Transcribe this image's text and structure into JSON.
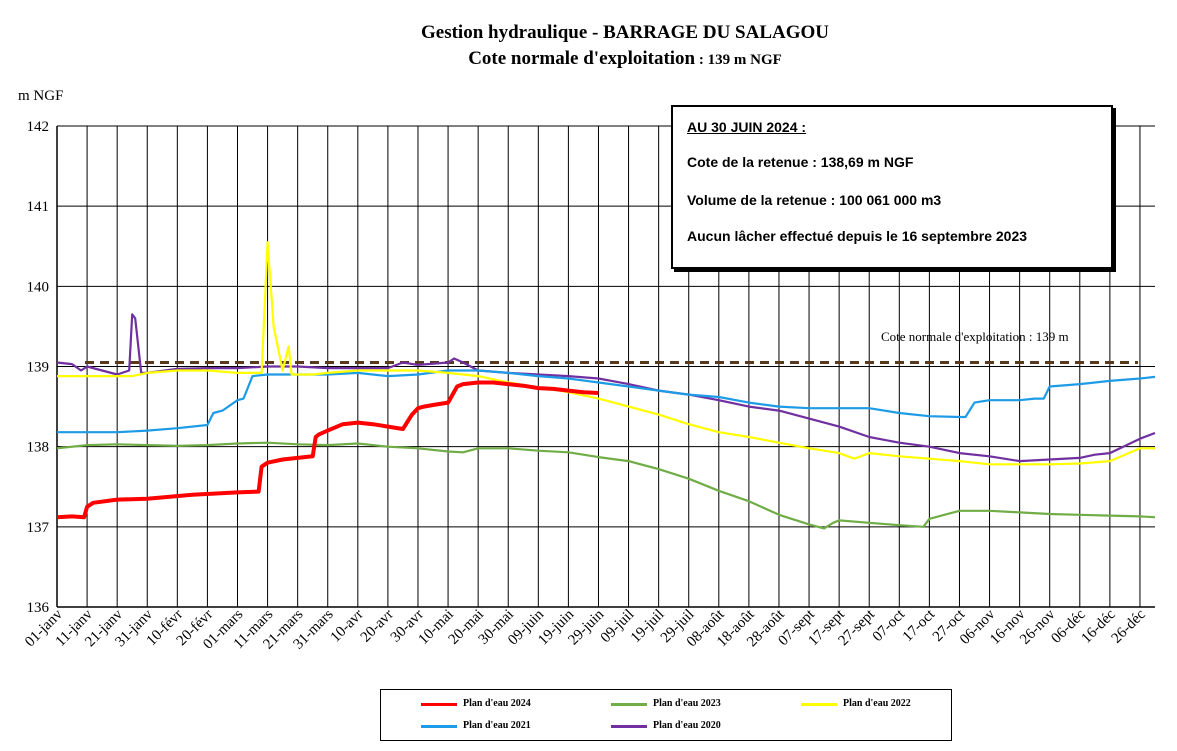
{
  "title": "Gestion hydraulique - BARRAGE DU SALAGOU",
  "subtitle": "Cote normale d'exploitation",
  "subtitle_suffix": " : 139 m NGF",
  "colors": {
    "2024": "#ff0000",
    "2023": "#70ad47",
    "2022": "#ffff00",
    "2021": "#1e9be6",
    "2020": "#7030a0",
    "reference": "#5a3a1e"
  },
  "info_box": {
    "heading": "AU 30 JUIN 2024 :",
    "line1": "Cote de la retenue : 138,69 m NGF",
    "line2": "Volume de la retenue : 100 061 000 m3",
    "line3": "Aucun lâcher effectué depuis le 16 septembre 2023"
  },
  "reference_line": {
    "label": "Cote normale d'exploitation : 139 m",
    "value": 139.05
  },
  "legend": [
    {
      "label": "Plan d'eau 2024",
      "color": "#ff0000"
    },
    {
      "label": "Plan d'eau 2023",
      "color": "#70ad47"
    },
    {
      "label": "Plan d'eau 2022",
      "color": "#ffff00"
    },
    {
      "label": "Plan d'eau 2021",
      "color": "#1e9be6"
    },
    {
      "label": "Plan d'eau 2020",
      "color": "#7030a0"
    }
  ],
  "chart_data": {
    "type": "line",
    "title": "Gestion hydraulique - BARRAGE DU SALAGOU",
    "subtitle": "Cote normale d'exploitation : 139 m NGF",
    "ylabel": "m NGF",
    "xlabel": "",
    "ylim": [
      136,
      142
    ],
    "xlim": [
      0,
      365
    ],
    "yticks": [
      136,
      137,
      138,
      139,
      140,
      141,
      142
    ],
    "xtick_days": [
      0,
      10,
      20,
      30,
      40,
      50,
      60,
      70,
      80,
      90,
      100,
      110,
      120,
      130,
      140,
      150,
      160,
      170,
      180,
      190,
      200,
      210,
      220,
      230,
      240,
      250,
      260,
      270,
      280,
      290,
      300,
      310,
      320,
      330,
      340,
      350,
      360
    ],
    "xtick_labels": [
      "01-janv",
      "11-janv",
      "21-janv",
      "31-janv",
      "10-févr",
      "20-févr",
      "01-mars",
      "11-mars",
      "21-mars",
      "31-mars",
      "10-avr",
      "20-avr",
      "30-avr",
      "10-mai",
      "20-mai",
      "30-mai",
      "09-juin",
      "19-juin",
      "29-juin",
      "09-juil",
      "19-juil",
      "29-juil",
      "08-août",
      "18-août",
      "28-août",
      "07-sept",
      "17-sept",
      "27-sept",
      "07-oct",
      "17-oct",
      "27-oct",
      "06-nov",
      "16-nov",
      "26-nov",
      "06-déc",
      "16-déc",
      "26-déc"
    ],
    "grid": true,
    "series": [
      {
        "name": "Plan d'eau 2024",
        "x": [
          0,
          5,
          9,
          10,
          12,
          20,
          30,
          45,
          60,
          67,
          68,
          70,
          75,
          85,
          86,
          87,
          90,
          95,
          100,
          105,
          110,
          115,
          118,
          120,
          122,
          125,
          130,
          133,
          135,
          140,
          145,
          150,
          155,
          160,
          165,
          170,
          175,
          180
        ],
        "y": [
          137.12,
          137.13,
          137.12,
          137.25,
          137.3,
          137.34,
          137.35,
          137.4,
          137.43,
          137.44,
          137.75,
          137.8,
          137.84,
          137.88,
          138.12,
          138.15,
          138.2,
          138.28,
          138.3,
          138.28,
          138.25,
          138.22,
          138.4,
          138.48,
          138.5,
          138.52,
          138.55,
          138.75,
          138.78,
          138.8,
          138.8,
          138.78,
          138.76,
          138.73,
          138.72,
          138.7,
          138.68,
          138.67
        ]
      },
      {
        "name": "Plan d'eau 2023",
        "x": [
          0,
          10,
          20,
          30,
          40,
          50,
          60,
          70,
          80,
          90,
          100,
          110,
          120,
          130,
          135,
          140,
          150,
          160,
          170,
          180,
          190,
          200,
          210,
          220,
          230,
          240,
          250,
          255,
          258,
          260,
          270,
          280,
          288,
          290,
          295,
          300,
          310,
          320,
          330,
          340,
          350,
          360,
          365
        ],
        "y": [
          137.98,
          138.02,
          138.03,
          138.02,
          138.01,
          138.02,
          138.04,
          138.05,
          138.03,
          138.02,
          138.04,
          138.0,
          137.98,
          137.94,
          137.93,
          137.98,
          137.98,
          137.95,
          137.93,
          137.87,
          137.82,
          137.72,
          137.6,
          137.45,
          137.32,
          137.15,
          137.03,
          136.98,
          137.05,
          137.08,
          137.05,
          137.02,
          137.0,
          137.1,
          137.15,
          137.2,
          137.2,
          137.18,
          137.16,
          137.15,
          137.14,
          137.13,
          137.12
        ]
      },
      {
        "name": "Plan d'eau 2022",
        "x": [
          0,
          10,
          20,
          25,
          30,
          40,
          50,
          60,
          68,
          70,
          72,
          75,
          77,
          78,
          80,
          85,
          90,
          100,
          110,
          120,
          130,
          140,
          150,
          160,
          170,
          180,
          190,
          200,
          210,
          220,
          230,
          240,
          250,
          260,
          265,
          270,
          280,
          290,
          300,
          310,
          320,
          330,
          340,
          350,
          355,
          360,
          365
        ],
        "y": [
          138.88,
          138.88,
          138.88,
          138.88,
          138.92,
          138.95,
          138.95,
          138.92,
          138.92,
          140.55,
          139.5,
          138.95,
          139.25,
          138.9,
          138.9,
          138.9,
          138.92,
          138.95,
          138.95,
          138.95,
          138.92,
          138.88,
          138.8,
          138.74,
          138.68,
          138.6,
          138.5,
          138.4,
          138.28,
          138.18,
          138.12,
          138.05,
          137.98,
          137.92,
          137.85,
          137.92,
          137.88,
          137.85,
          137.82,
          137.78,
          137.78,
          137.78,
          137.79,
          137.82,
          137.9,
          137.98,
          137.98
        ]
      },
      {
        "name": "Plan d'eau 2021",
        "x": [
          0,
          10,
          20,
          30,
          40,
          50,
          52,
          55,
          60,
          62,
          65,
          70,
          80,
          90,
          100,
          110,
          120,
          130,
          140,
          150,
          160,
          170,
          180,
          190,
          200,
          210,
          220,
          230,
          240,
          250,
          260,
          270,
          280,
          290,
          300,
          302,
          305,
          310,
          320,
          325,
          328,
          330,
          340,
          350,
          360,
          365
        ],
        "y": [
          138.18,
          138.18,
          138.18,
          138.2,
          138.23,
          138.27,
          138.42,
          138.45,
          138.58,
          138.6,
          138.88,
          138.9,
          138.9,
          138.9,
          138.92,
          138.88,
          138.9,
          138.95,
          138.95,
          138.92,
          138.88,
          138.85,
          138.8,
          138.75,
          138.7,
          138.65,
          138.62,
          138.55,
          138.5,
          138.48,
          138.48,
          138.48,
          138.42,
          138.38,
          138.37,
          138.37,
          138.55,
          138.58,
          138.58,
          138.6,
          138.6,
          138.75,
          138.78,
          138.82,
          138.85,
          138.87
        ]
      },
      {
        "name": "Plan d'eau 2020",
        "x": [
          0,
          5,
          8,
          10,
          20,
          24,
          25,
          26,
          28,
          30,
          40,
          50,
          60,
          70,
          80,
          90,
          100,
          110,
          115,
          120,
          130,
          132,
          135,
          140,
          150,
          160,
          170,
          180,
          190,
          200,
          210,
          220,
          230,
          240,
          250,
          260,
          270,
          280,
          290,
          300,
          310,
          320,
          330,
          340,
          345,
          350,
          360,
          365
        ],
        "y": [
          139.05,
          139.03,
          138.95,
          139.0,
          138.9,
          138.95,
          139.65,
          139.6,
          138.92,
          138.92,
          138.97,
          138.98,
          138.98,
          139.0,
          139.0,
          138.98,
          138.98,
          138.98,
          139.05,
          139.02,
          139.05,
          139.1,
          139.05,
          138.95,
          138.92,
          138.9,
          138.88,
          138.85,
          138.78,
          138.7,
          138.65,
          138.58,
          138.5,
          138.45,
          138.35,
          138.25,
          138.12,
          138.05,
          138.0,
          137.92,
          137.88,
          137.82,
          137.84,
          137.86,
          137.9,
          137.92,
          138.1,
          138.17
        ]
      }
    ]
  }
}
